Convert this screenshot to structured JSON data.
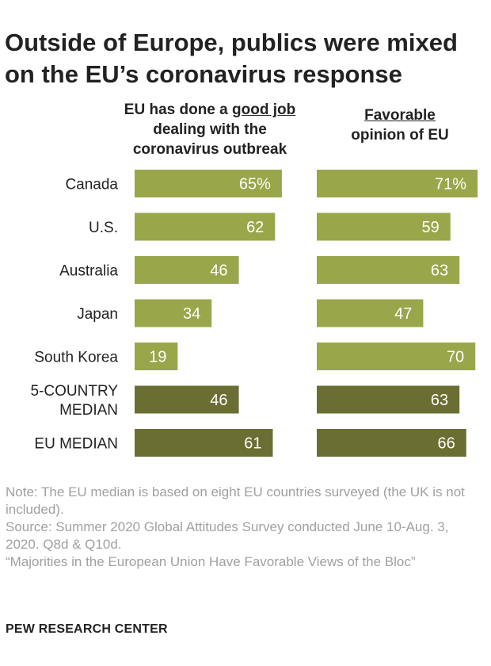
{
  "title": "Outside of Europe, publics were mixed on the EU’s coronavirus response",
  "columns": {
    "left": {
      "pre": "EU has done a ",
      "emph": "good job",
      "line2": "dealing with the",
      "line3": "coronavirus outbreak"
    },
    "right": {
      "emph": "Favorable",
      "line2": "opinion of EU"
    }
  },
  "chart_data": {
    "type": "bar",
    "categories": [
      "Canada",
      "U.S.",
      "Australia",
      "Japan",
      "South Korea",
      "5-COUNTRY MEDIAN",
      "EU MEDIAN"
    ],
    "category_lines": [
      [
        "Canada"
      ],
      [
        "U.S."
      ],
      [
        "Australia"
      ],
      [
        "Japan"
      ],
      [
        "South Korea"
      ],
      [
        "5-COUNTRY",
        "MEDIAN"
      ],
      [
        "EU MEDIAN"
      ]
    ],
    "series": [
      {
        "name": "EU has done a good job dealing with the coronavirus outbreak",
        "values": [
          65,
          62,
          46,
          34,
          19,
          46,
          61
        ],
        "labels": [
          "65%",
          "62",
          "46",
          "34",
          "19",
          "46",
          "61"
        ]
      },
      {
        "name": "Favorable opinion of EU",
        "values": [
          71,
          59,
          63,
          47,
          70,
          63,
          66
        ],
        "labels": [
          "71%",
          "59",
          "63",
          "47",
          "70",
          "63",
          "66"
        ]
      }
    ],
    "median_rows": [
      5,
      6
    ],
    "colors": {
      "country": "#9aa64a",
      "median": "#6b6e32",
      "label": "#ffffff"
    },
    "xlim": [
      0,
      71
    ]
  },
  "notes": {
    "note": "Note: The EU median is based on eight EU countries surveyed (the UK is not included).",
    "source": "Source: Summer 2020 Global Attitudes Survey conducted June 10-Aug. 3, 2020. Q8d & Q10d.",
    "report": "“Majorities in the European Union Have Favorable Views of the Bloc”"
  },
  "footer": "PEW RESEARCH CENTER"
}
